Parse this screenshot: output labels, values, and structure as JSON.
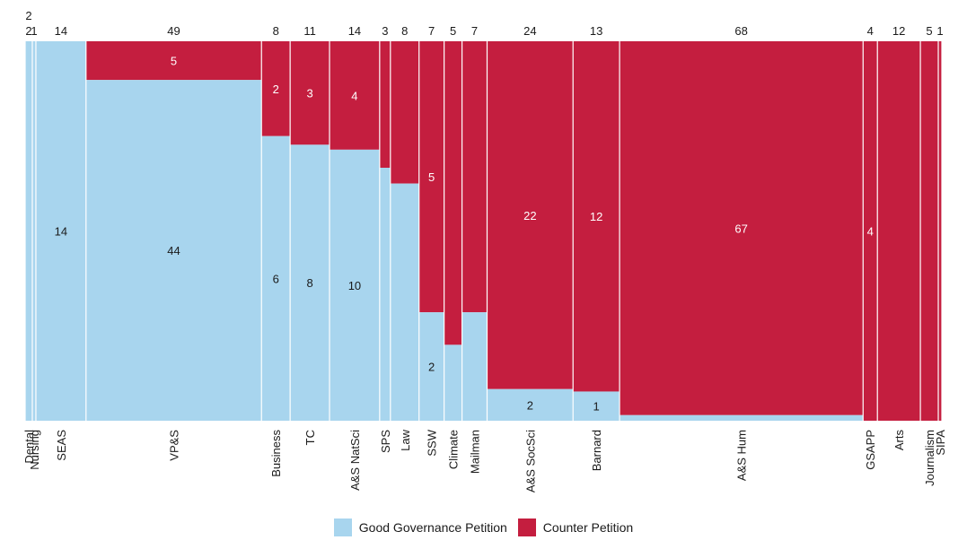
{
  "chart_data": {
    "type": "bar",
    "subtype": "mosaic",
    "title": "",
    "xlabel": "",
    "ylabel": "",
    "colors": {
      "good": "#a8d5ee",
      "counter": "#c41e3f"
    },
    "legend_placement": "bottom-center",
    "series": [
      {
        "name": "Good Governance Petition",
        "key": "good"
      },
      {
        "name": "Counter Petition",
        "key": "counter"
      }
    ],
    "categories": [
      "Dental",
      "Nursing",
      "SEAS",
      "VP&S",
      "Business",
      "TC",
      "A&S NatSci",
      "SPS",
      "Law",
      "SSW",
      "Climate",
      "Mailman",
      "A&S SocSci",
      "Barnard",
      "A&S Hum",
      "GSAPP",
      "Arts",
      "Journalism",
      "SIPA"
    ],
    "totals": [
      2,
      1,
      14,
      49,
      8,
      11,
      14,
      3,
      8,
      7,
      5,
      7,
      24,
      13,
      68,
      4,
      12,
      5,
      1
    ],
    "good": [
      2,
      1,
      14,
      44,
      6,
      8,
      10,
      2,
      5,
      2,
      1,
      2,
      2,
      1,
      1,
      0,
      0,
      0,
      0
    ],
    "counter": [
      0,
      0,
      0,
      5,
      2,
      3,
      4,
      1,
      3,
      5,
      4,
      5,
      22,
      12,
      67,
      4,
      12,
      5,
      1
    ],
    "total_labels": [
      "2",
      "1",
      "14",
      "49",
      "8",
      "11",
      "14",
      "3",
      "8",
      "7",
      "5",
      "7",
      "24",
      "13",
      "68",
      "4",
      "12",
      "5",
      "1"
    ],
    "good_labels": [
      "",
      "",
      "14",
      "44",
      "6",
      "8",
      "10",
      "",
      "",
      "2",
      "",
      "",
      "2",
      "1",
      "",
      "",
      "",
      "",
      ""
    ],
    "counter_labels": [
      "",
      "",
      "",
      "5",
      "2",
      "3",
      "4",
      "",
      "",
      "5",
      "",
      "",
      "22",
      "12",
      "67",
      "4",
      "",
      "",
      ""
    ],
    "extra_total_labels": [
      {
        "index": 0,
        "text": "2"
      }
    ]
  }
}
